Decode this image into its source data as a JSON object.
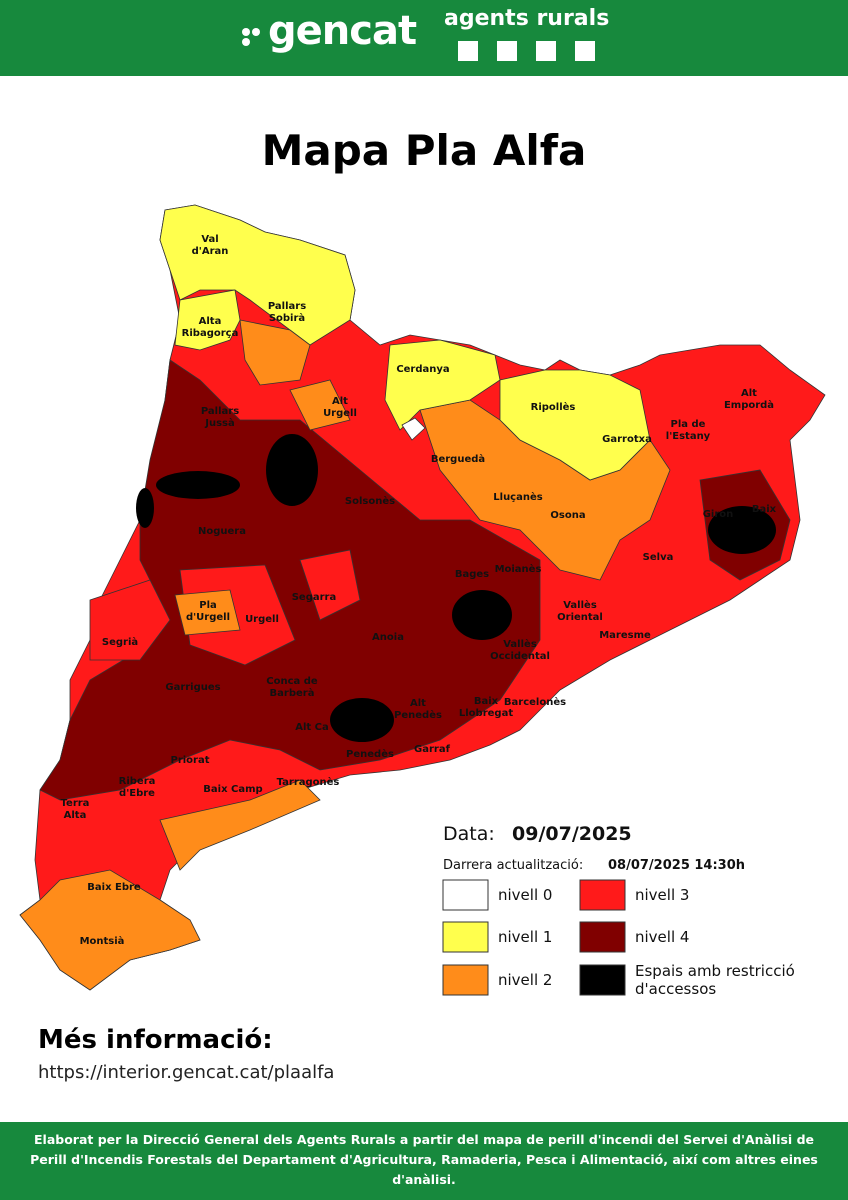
{
  "header": {
    "brand": "gencat",
    "unit": "agents rurals"
  },
  "title": "Mapa Pla Alfa",
  "comarques": [
    [
      "Val",
      "d'Aran"
    ],
    [
      "Alta",
      "Ribagorça"
    ],
    [
      "Pallars",
      "Sobirà"
    ],
    [
      "Pallars",
      "Jussà"
    ],
    [
      "Alt",
      "Urgell"
    ],
    [
      "Cerdanya"
    ],
    [
      "Ripollès"
    ],
    [
      "Alt",
      "Empordà"
    ],
    [
      "Garrotxa"
    ],
    [
      "Pla de",
      "l'Estany"
    ],
    [
      "Berguedà"
    ],
    [
      "Lluçanès"
    ],
    [
      "Osona"
    ],
    [
      "Solsonès"
    ],
    [
      "Noguera"
    ],
    [
      "Giron"
    ],
    [
      "Baix"
    ],
    [
      "Selva"
    ],
    [
      "Bages"
    ],
    [
      "Moianès"
    ],
    [
      "Vallès",
      "Oriental"
    ],
    [
      "Maresme"
    ],
    [
      "Vallès",
      "Occidental"
    ],
    [
      "Segarra"
    ],
    [
      "Pla",
      "d'Urgell"
    ],
    [
      "Urgell"
    ],
    [
      "Segrià"
    ],
    [
      "Anoia"
    ],
    [
      "Garrigues"
    ],
    [
      "Conca de",
      "Barberà"
    ],
    [
      "Alt",
      "Penedès"
    ],
    [
      "Baix",
      "Llobregat"
    ],
    [
      "Barcelonès"
    ],
    [
      "Alt Ca"
    ],
    [
      "Garraf"
    ],
    [
      "Penedès"
    ],
    [
      "Priorat"
    ],
    [
      "Tarragonès"
    ],
    [
      "Baix Camp"
    ],
    [
      "Ribera",
      "d'Ebre"
    ],
    [
      "Terra",
      "Alta"
    ],
    [
      "Baix Ebre"
    ],
    [
      "Montsià"
    ]
  ],
  "date": {
    "label": "Data:",
    "value": "09/07/2025"
  },
  "update": {
    "label": "Darrera actualització:",
    "value": "08/07/2025 14:30h"
  },
  "legend": [
    {
      "label": [
        "nivell 0"
      ],
      "color": "#ffffff"
    },
    {
      "label": [
        "nivell 1"
      ],
      "color": "#ffff4d"
    },
    {
      "label": [
        "nivell 2"
      ],
      "color": "#ff8c1a"
    },
    {
      "label": [
        "nivell 3"
      ],
      "color": "#ff1a1a"
    },
    {
      "label": [
        "nivell 4"
      ],
      "color": "#800000"
    },
    {
      "label": [
        "Espais amb restricció",
        "d'accessos"
      ],
      "color": "#000000"
    }
  ],
  "info": {
    "title": "Més informació:",
    "url": "https://interior.gencat.cat/plaalfa"
  },
  "footer": "Elaborat per la Direcció General dels Agents Rurals a partir del mapa de perill d'incendi del Servei d'Anàlisi de Perill d'Incendis Forestals del Departament d'Agricultura, Ramaderia, Pesca i Alimentació, així com altres eines d'anàlisi."
}
